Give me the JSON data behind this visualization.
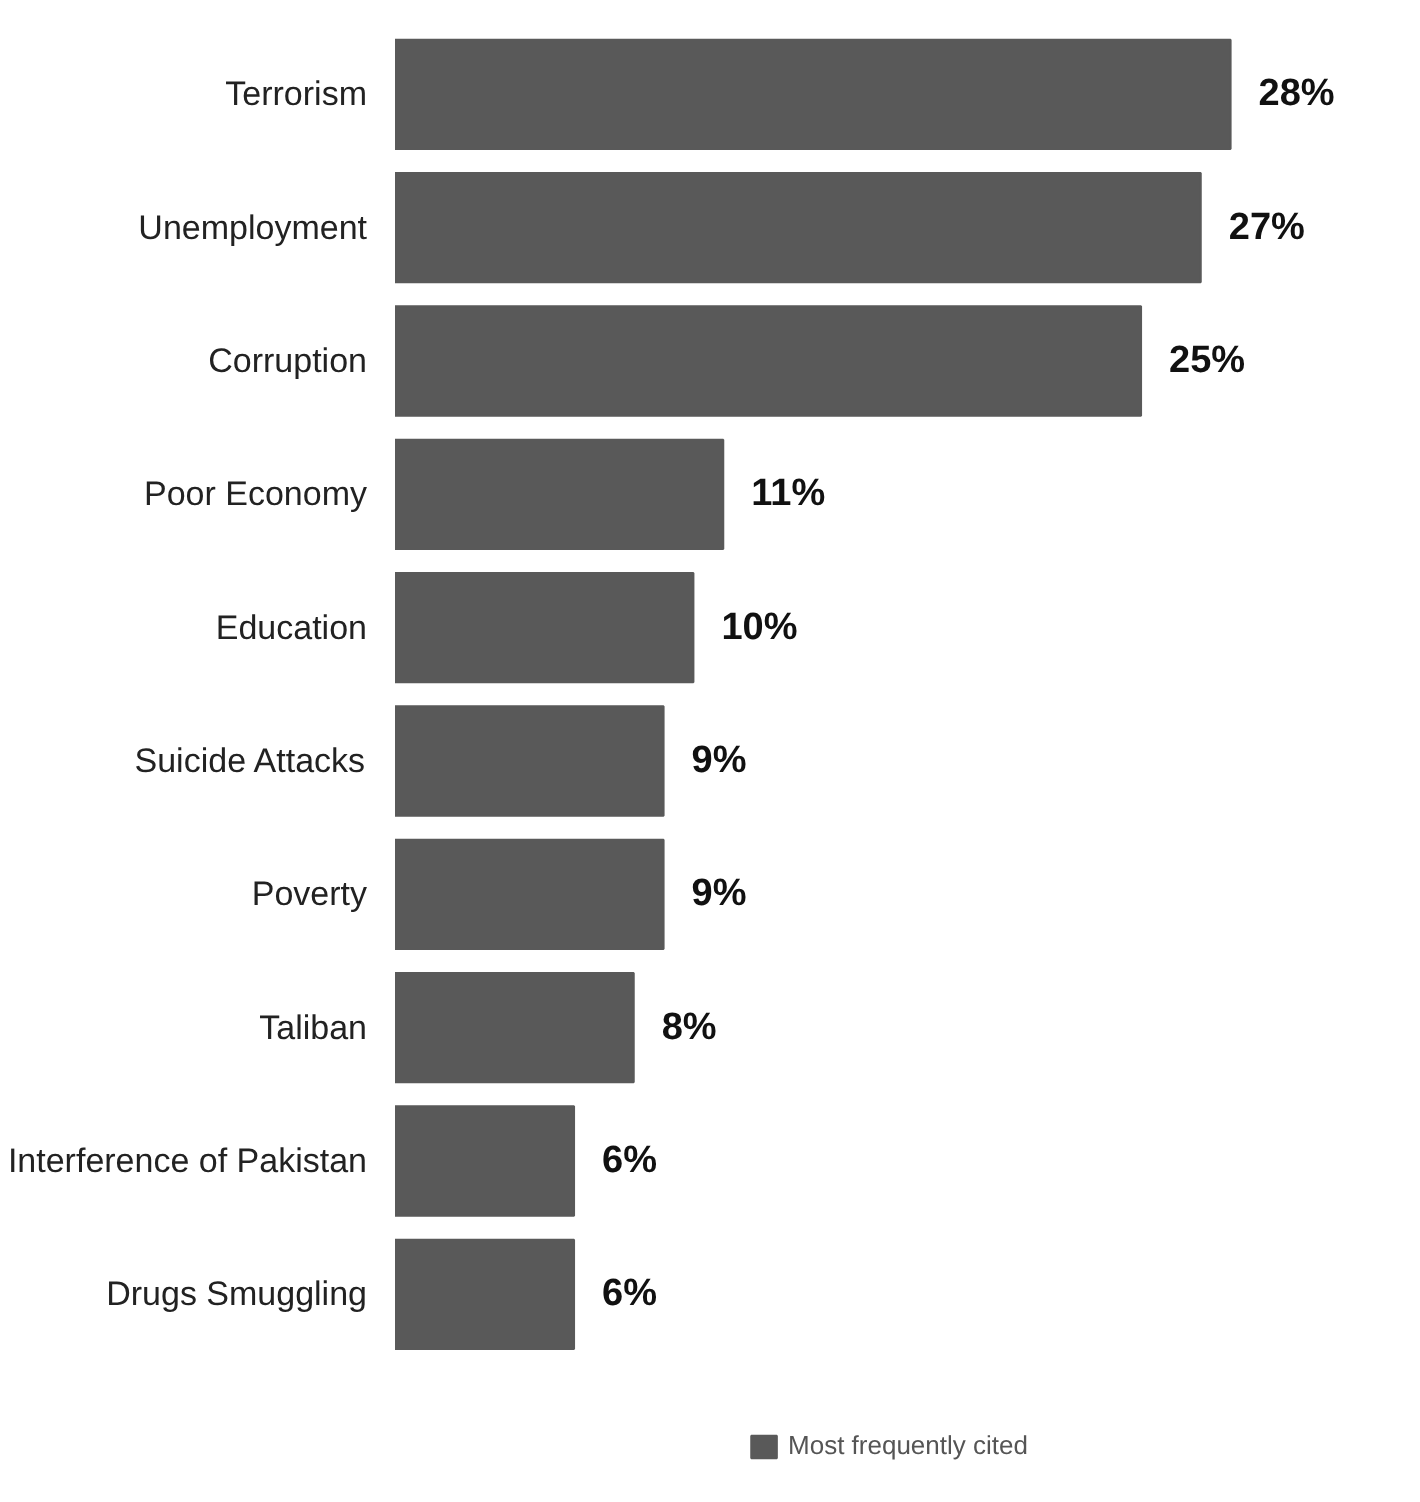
{
  "chart_data": {
    "type": "bar",
    "orientation": "horizontal",
    "categories": [
      "Terrorism",
      "Unemployment",
      "Corruption",
      "Poor Economy",
      "Education",
      "Suicide Attacks",
      "Poverty",
      "Taliban",
      "Interference of Pakistan",
      "Drugs Smuggling"
    ],
    "series": [
      {
        "name": "Most frequently cited",
        "color": "#595959",
        "values": [
          28,
          27,
          25,
          11,
          10,
          9,
          9,
          8,
          6,
          6
        ],
        "value_labels": [
          "28%",
          "27%",
          "25%",
          "11%",
          "10%",
          "9%",
          "9%",
          "8%",
          "6%",
          "6%"
        ]
      }
    ],
    "data_labels": true,
    "grid": false,
    "legend": "bottom"
  }
}
